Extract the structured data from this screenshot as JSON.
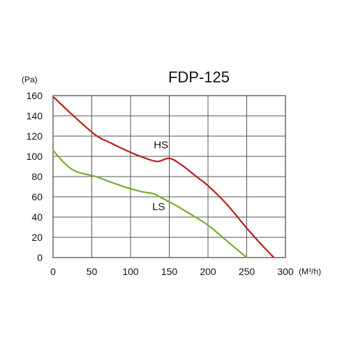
{
  "chart_data": {
    "type": "line",
    "title": "FDP-125",
    "ylabel": "(Pa)",
    "xlabel": "(M³/h)",
    "xlim": [
      0,
      300
    ],
    "ylim": [
      0,
      160
    ],
    "x_ticks": [
      0,
      50,
      100,
      150,
      200,
      250,
      300
    ],
    "y_ticks": [
      0,
      20,
      40,
      60,
      80,
      100,
      120,
      140,
      160
    ],
    "x_tick_labels": [
      "0",
      "50",
      "100",
      "150",
      "200",
      "250",
      "300"
    ],
    "y_tick_labels": [
      "0",
      "20",
      "40",
      "60",
      "80",
      "100",
      "120",
      "140",
      "160"
    ],
    "grid": true,
    "legend": "none",
    "series": [
      {
        "name": "HS",
        "color": "#b5201f",
        "label_at": [
          130,
          108
        ],
        "points": [
          [
            0,
            159
          ],
          [
            25,
            141
          ],
          [
            55,
            121
          ],
          [
            75,
            113
          ],
          [
            100,
            104
          ],
          [
            120,
            98
          ],
          [
            135,
            95
          ],
          [
            150,
            98
          ],
          [
            165,
            92
          ],
          [
            185,
            80
          ],
          [
            200,
            71
          ],
          [
            225,
            52
          ],
          [
            250,
            29
          ],
          [
            270,
            12
          ],
          [
            285,
            0
          ]
        ]
      },
      {
        "name": "LS",
        "color": "#7aab2e",
        "label_at": [
          128,
          47
        ],
        "points": [
          [
            0,
            106
          ],
          [
            15,
            93
          ],
          [
            30,
            85
          ],
          [
            55,
            80
          ],
          [
            80,
            73
          ],
          [
            100,
            68
          ],
          [
            115,
            65
          ],
          [
            130,
            63
          ],
          [
            140,
            59
          ],
          [
            155,
            53
          ],
          [
            175,
            44
          ],
          [
            200,
            32
          ],
          [
            225,
            16
          ],
          [
            250,
            0
          ]
        ]
      }
    ]
  }
}
